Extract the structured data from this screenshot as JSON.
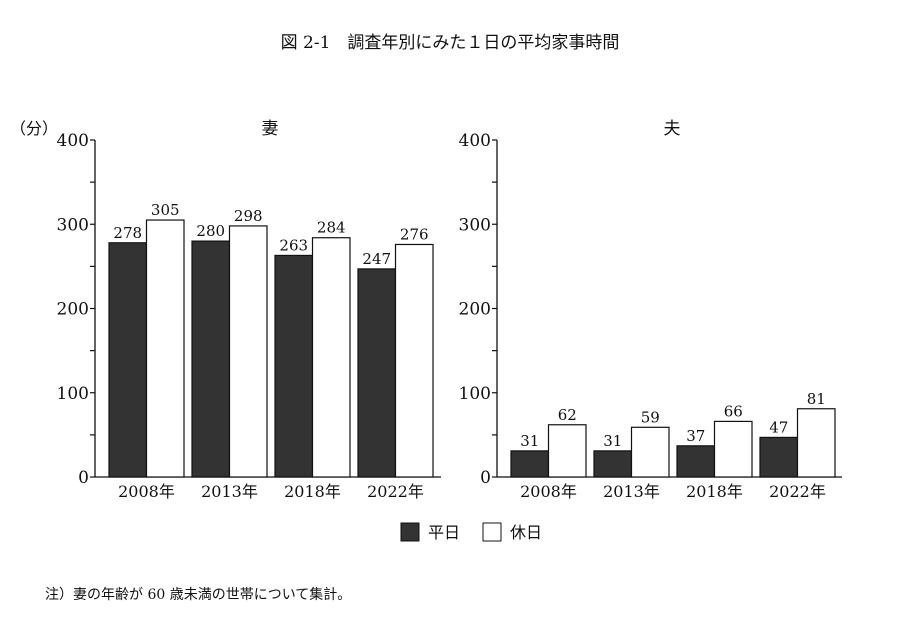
{
  "title": "図 2-1　調査年別にみた１日の平均家事時間",
  "unit_label": "（分）",
  "legend": {
    "weekday": "平日",
    "holiday": "休日"
  },
  "note": "注）妻の年齢が 60 歳未満の世帯について集計。",
  "colors": {
    "weekday": "#333333",
    "holiday": "#ffffff"
  },
  "chart_data": [
    {
      "type": "bar",
      "title": "妻",
      "categories": [
        "2008年",
        "2013年",
        "2018年",
        "2022年"
      ],
      "ylim": [
        0,
        400
      ],
      "yticks": [
        0,
        100,
        200,
        300,
        400
      ],
      "series": [
        {
          "name": "平日",
          "values": [
            278,
            280,
            263,
            247
          ]
        },
        {
          "name": "休日",
          "values": [
            305,
            298,
            284,
            276
          ]
        }
      ]
    },
    {
      "type": "bar",
      "title": "夫",
      "categories": [
        "2008年",
        "2013年",
        "2018年",
        "2022年"
      ],
      "ylim": [
        0,
        400
      ],
      "yticks": [
        0,
        100,
        200,
        300,
        400
      ],
      "series": [
        {
          "name": "平日",
          "values": [
            31,
            31,
            37,
            47
          ]
        },
        {
          "name": "休日",
          "values": [
            62,
            59,
            66,
            81
          ]
        }
      ]
    }
  ]
}
